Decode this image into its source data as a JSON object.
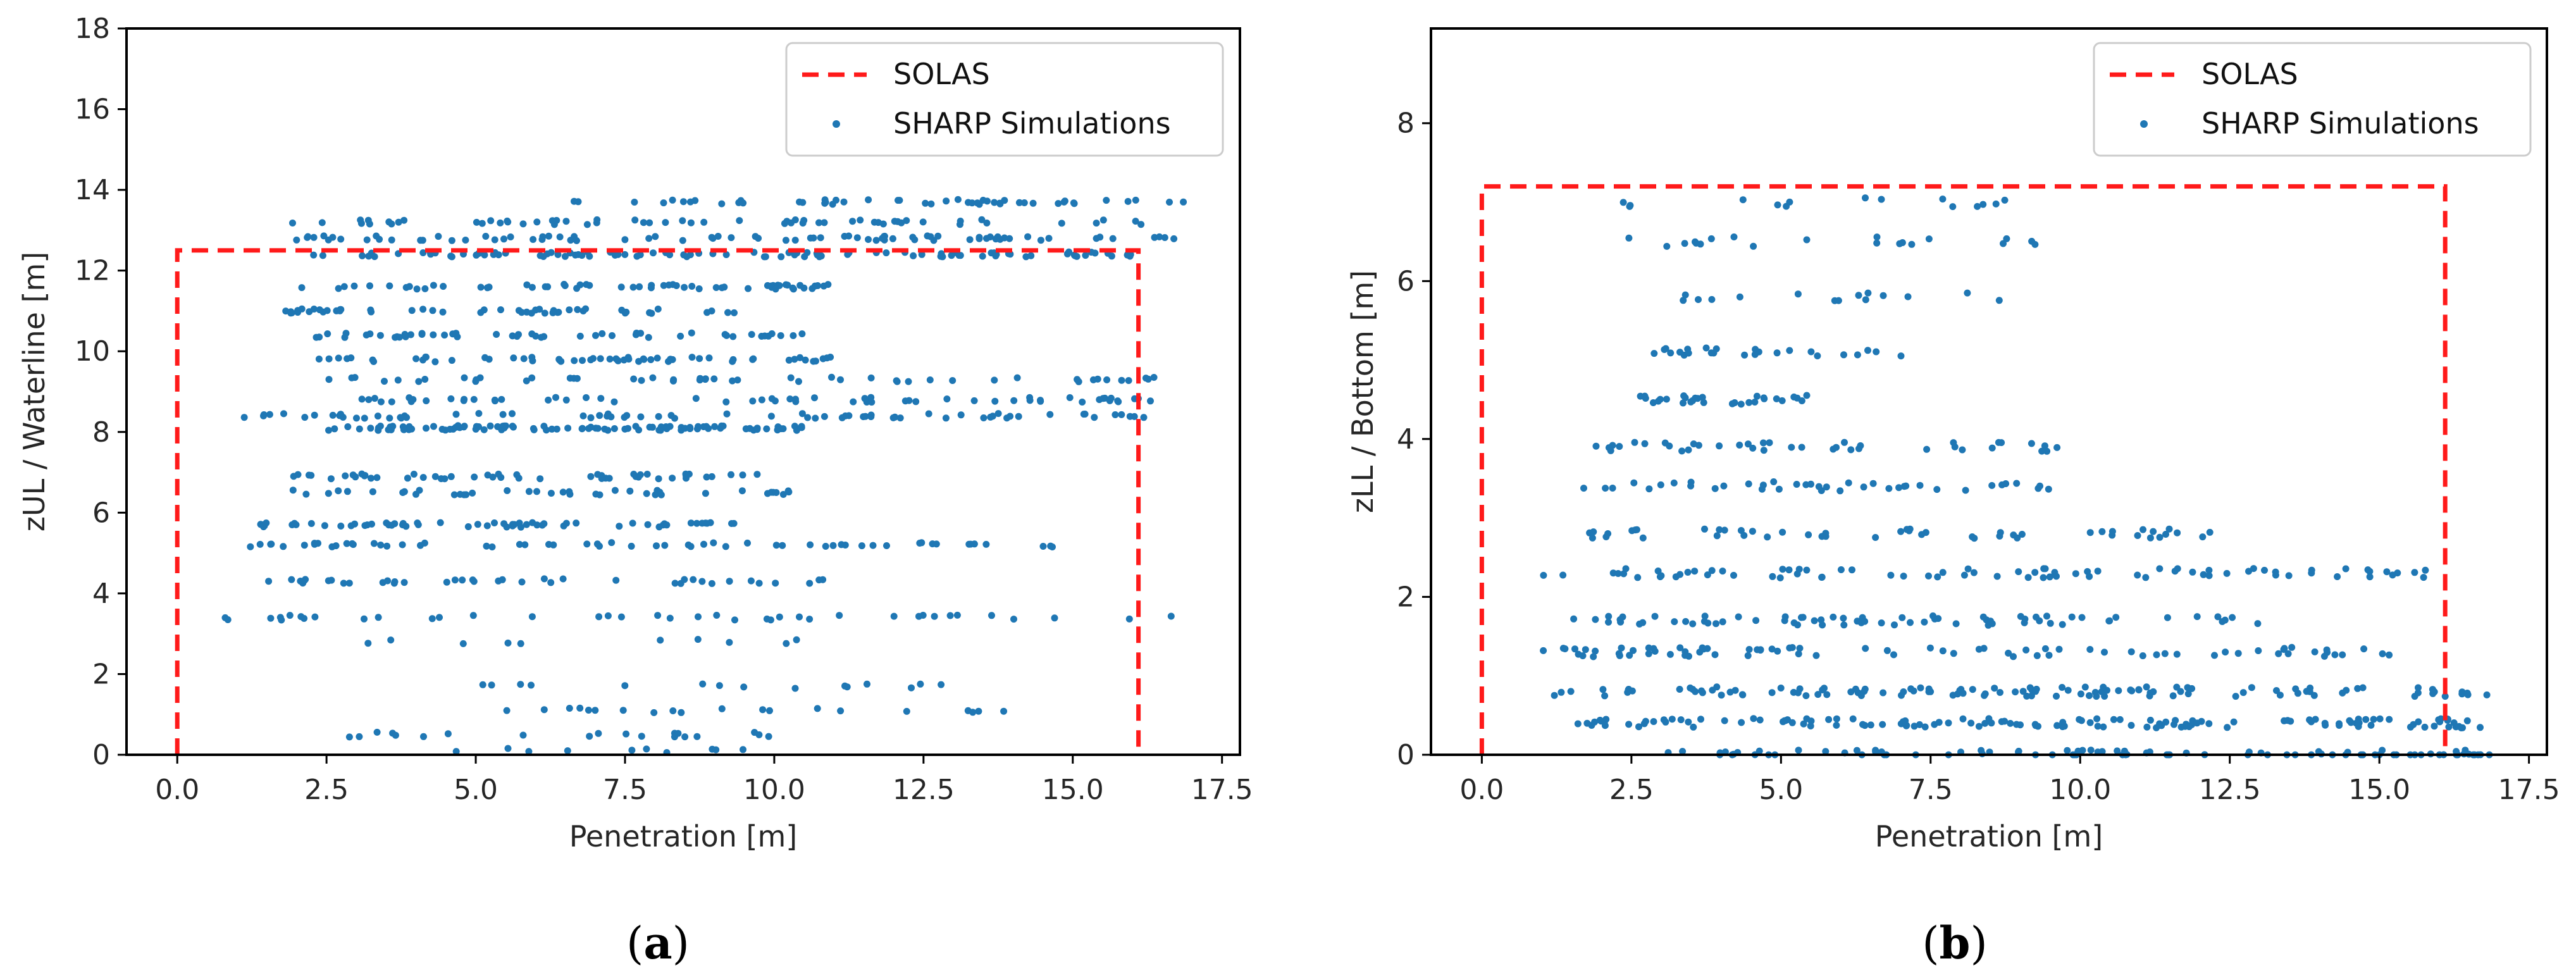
{
  "colors": {
    "solas": "#ff1a1a",
    "sim": "#1f77b4",
    "axis": "#000000"
  },
  "chart_data": [
    {
      "type": "scatter",
      "panel_label": "a",
      "xlabel": "Penetration [m]",
      "ylabel": "zUL / Waterline [m]",
      "xlim": [
        -0.85,
        17.8
      ],
      "ylim": [
        0,
        18
      ],
      "xticks": [
        0.0,
        2.5,
        5.0,
        7.5,
        10.0,
        12.5,
        15.0,
        17.5
      ],
      "xtick_labels": [
        "0.0",
        "2.5",
        "5.0",
        "7.5",
        "10.0",
        "12.5",
        "15.0",
        "17.5"
      ],
      "yticks": [
        0,
        2,
        4,
        6,
        8,
        10,
        12,
        14,
        16,
        18
      ],
      "ytick_labels": [
        "0",
        "2",
        "4",
        "6",
        "8",
        "10",
        "12",
        "14",
        "16",
        "18"
      ],
      "legend": {
        "position": "top-right",
        "entries": [
          "SOLAS",
          "SHARP Simulations"
        ]
      },
      "series": [
        {
          "name": "SOLAS",
          "style": "dashed-line",
          "x": [
            0,
            0,
            16.1,
            16.1
          ],
          "y": [
            0,
            12.5,
            12.5,
            0
          ]
        },
        {
          "name": "SHARP Simulations",
          "style": "points",
          "bands": [
            {
              "y": 13.7,
              "x_from": 6.5,
              "x_to": 16.9,
              "count": 50
            },
            {
              "y": 13.2,
              "x_from": 1.8,
              "x_to": 16.5,
              "count": 60
            },
            {
              "y": 12.8,
              "x_from": 1.8,
              "x_to": 16.8,
              "count": 80
            },
            {
              "y": 12.4,
              "x_from": 2.2,
              "x_to": 16.5,
              "count": 100
            },
            {
              "y": 11.6,
              "x_from": 2.0,
              "x_to": 11.0,
              "count": 60
            },
            {
              "y": 11.0,
              "x_from": 1.8,
              "x_to": 10.2,
              "count": 50
            },
            {
              "y": 10.4,
              "x_from": 2.2,
              "x_to": 10.5,
              "count": 50
            },
            {
              "y": 9.8,
              "x_from": 2.3,
              "x_to": 11.2,
              "count": 60
            },
            {
              "y": 9.3,
              "x_from": 2.5,
              "x_to": 16.8,
              "count": 50
            },
            {
              "y": 8.8,
              "x_from": 2.8,
              "x_to": 16.8,
              "count": 60
            },
            {
              "y": 8.4,
              "x_from": 0.9,
              "x_to": 16.2,
              "count": 70
            },
            {
              "y": 8.1,
              "x_from": 2.5,
              "x_to": 10.5,
              "count": 100
            },
            {
              "y": 6.9,
              "x_from": 1.7,
              "x_to": 10.0,
              "count": 50
            },
            {
              "y": 6.5,
              "x_from": 1.5,
              "x_to": 10.5,
              "count": 40
            },
            {
              "y": 5.7,
              "x_from": 1.3,
              "x_to": 9.5,
              "count": 60
            },
            {
              "y": 5.2,
              "x_from": 1.2,
              "x_to": 14.8,
              "count": 60
            },
            {
              "y": 4.3,
              "x_from": 1.0,
              "x_to": 11.0,
              "count": 40
            },
            {
              "y": 3.4,
              "x_from": 0.8,
              "x_to": 16.9,
              "count": 40
            },
            {
              "y": 2.8,
              "x_from": 2.5,
              "x_to": 11.8,
              "count": 10
            },
            {
              "y": 1.7,
              "x_from": 5.0,
              "x_to": 13.2,
              "count": 15
            },
            {
              "y": 1.1,
              "x_from": 4.8,
              "x_to": 14.3,
              "count": 20
            },
            {
              "y": 0.5,
              "x_from": 2.4,
              "x_to": 10.0,
              "count": 20
            },
            {
              "y": 0.1,
              "x_from": 3.0,
              "x_to": 9.8,
              "count": 10
            }
          ]
        }
      ]
    },
    {
      "type": "scatter",
      "panel_label": "b",
      "xlabel": "Penetration [m]",
      "ylabel": "zLL / Bottom [m]",
      "xlim": [
        -0.85,
        17.8
      ],
      "ylim": [
        0,
        9.2
      ],
      "xticks": [
        0.0,
        2.5,
        5.0,
        7.5,
        10.0,
        12.5,
        15.0,
        17.5
      ],
      "xtick_labels": [
        "0.0",
        "2.5",
        "5.0",
        "7.5",
        "10.0",
        "12.5",
        "15.0",
        "17.5"
      ],
      "yticks": [
        0,
        2,
        4,
        6,
        8
      ],
      "ytick_labels": [
        "0",
        "2",
        "4",
        "6",
        "8"
      ],
      "legend": {
        "position": "top-right",
        "entries": [
          "SOLAS",
          "SHARP Simulations"
        ]
      },
      "series": [
        {
          "name": "SOLAS",
          "style": "dashed-line",
          "x": [
            0,
            0,
            16.1,
            16.1
          ],
          "y": [
            0,
            7.2,
            7.2,
            0
          ]
        },
        {
          "name": "SHARP Simulations",
          "style": "points",
          "bands": [
            {
              "y": 0.0,
              "x_from": 3.0,
              "x_to": 16.9,
              "count": 90
            },
            {
              "y": 0.4,
              "x_from": 1.5,
              "x_to": 16.8,
              "count": 140
            },
            {
              "y": 0.8,
              "x_from": 1.0,
              "x_to": 16.8,
              "count": 120
            },
            {
              "y": 1.3,
              "x_from": 1.0,
              "x_to": 15.5,
              "count": 80
            },
            {
              "y": 1.7,
              "x_from": 1.5,
              "x_to": 13.0,
              "count": 70
            },
            {
              "y": 2.3,
              "x_from": 1.0,
              "x_to": 15.8,
              "count": 80
            },
            {
              "y": 2.8,
              "x_from": 1.2,
              "x_to": 12.5,
              "count": 50
            },
            {
              "y": 3.4,
              "x_from": 1.5,
              "x_to": 9.5,
              "count": 40
            },
            {
              "y": 3.9,
              "x_from": 1.8,
              "x_to": 10.0,
              "count": 40
            },
            {
              "y": 4.5,
              "x_from": 2.5,
              "x_to": 5.5,
              "count": 30
            },
            {
              "y": 5.1,
              "x_from": 2.8,
              "x_to": 7.5,
              "count": 25
            },
            {
              "y": 5.8,
              "x_from": 3.0,
              "x_to": 8.8,
              "count": 15
            },
            {
              "y": 6.5,
              "x_from": 2.4,
              "x_to": 9.3,
              "count": 20
            },
            {
              "y": 7.0,
              "x_from": 2.3,
              "x_to": 8.8,
              "count": 15
            }
          ]
        }
      ]
    }
  ]
}
